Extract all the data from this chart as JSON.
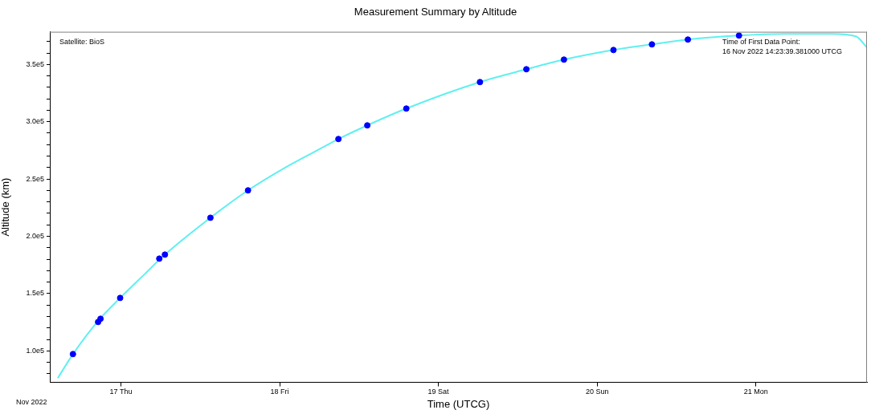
{
  "chart_data": {
    "type": "line",
    "title": "Measurement Summary by Altitude",
    "xlabel": "Time (UTCG)",
    "ylabel": "Altitude (km)",
    "annotations": [
      "Satellite: BioS",
      "Time of First Data Point:\n16 Nov 2022 14:23:39.381000 UTCG",
      "Nov 2022"
    ],
    "xlim": [
      "2022-11-16T13:15",
      "2022-11-21T16:48"
    ],
    "xticks": [
      {
        "value": "2022-11-17",
        "label": "17 Thu"
      },
      {
        "value": "2022-11-18",
        "label": "18 Fri"
      },
      {
        "value": "2022-11-19",
        "label": "19 Sat"
      },
      {
        "value": "2022-11-20",
        "label": "20 Sun"
      },
      {
        "value": "2022-11-21",
        "label": "21 Mon"
      }
    ],
    "ylim": [
      72500,
      378500
    ],
    "yticks": [
      {
        "value": 80000,
        "label": null
      },
      {
        "value": 90000,
        "label": null
      },
      {
        "value": 100000,
        "label": "1.0e5"
      },
      {
        "value": 110000,
        "label": null
      },
      {
        "value": 120000,
        "label": null
      },
      {
        "value": 130000,
        "label": null
      },
      {
        "value": 140000,
        "label": null
      },
      {
        "value": 150000,
        "label": "1.5e5"
      },
      {
        "value": 160000,
        "label": null
      },
      {
        "value": 170000,
        "label": null
      },
      {
        "value": 180000,
        "label": null
      },
      {
        "value": 190000,
        "label": null
      },
      {
        "value": 200000,
        "label": "2.0e5"
      },
      {
        "value": 210000,
        "label": null
      },
      {
        "value": 220000,
        "label": null
      },
      {
        "value": 230000,
        "label": null
      },
      {
        "value": 240000,
        "label": null
      },
      {
        "value": 250000,
        "label": "2.5e5"
      },
      {
        "value": 260000,
        "label": null
      },
      {
        "value": 270000,
        "label": null
      },
      {
        "value": 280000,
        "label": null
      },
      {
        "value": 290000,
        "label": null
      },
      {
        "value": 300000,
        "label": "3.0e5"
      },
      {
        "value": 310000,
        "label": null
      },
      {
        "value": 320000,
        "label": null
      },
      {
        "value": 330000,
        "label": null
      },
      {
        "value": 340000,
        "label": null
      },
      {
        "value": 350000,
        "label": "3.5e5"
      },
      {
        "value": 360000,
        "label": null
      },
      {
        "value": 370000,
        "label": null
      }
    ],
    "grid": false,
    "series": [
      {
        "color": "#5ff0f0",
        "marker": "none",
        "x": [
          "2022-11-16T14:27",
          "2022-11-16T16:45",
          "2022-11-16T20:37",
          "2022-11-16T23:53",
          "2022-11-17T03:30",
          "2022-11-17T06:39",
          "2022-11-17T13:32",
          "2022-11-17T19:13",
          "2022-11-18T01:00",
          "2022-11-18T05:00",
          "2022-11-18T08:53",
          "2022-11-18T13:15",
          "2022-11-18T19:09",
          "2022-11-19T06:17",
          "2022-11-19T13:18",
          "2022-11-19T18:59",
          "2022-11-20T02:28",
          "2022-11-20T08:17",
          "2022-11-20T13:43",
          "2022-11-20T21:27",
          "2022-11-21T04:13",
          "2022-11-21T11:30",
          "2022-11-21T15:07",
          "2022-11-21T16:48"
        ],
        "values": [
          76200,
          97200,
          126600,
          146200,
          166500,
          184000,
          216200,
          240100,
          260500,
          273000,
          284900,
          296800,
          311500,
          334600,
          345800,
          354200,
          362600,
          367500,
          371700,
          375200,
          376600,
          376600,
          374500,
          364700
        ]
      },
      {
        "type": "scatter",
        "color": "#0000ff",
        "marker": "circle",
        "x": [
          "2022-11-16T16:45",
          "2022-11-16T20:33",
          "2022-11-16T20:55",
          "2022-11-16T23:53",
          "2022-11-17T05:48",
          "2022-11-17T06:39",
          "2022-11-17T13:32",
          "2022-11-17T19:13",
          "2022-11-18T08:53",
          "2022-11-18T13:15",
          "2022-11-18T19:09",
          "2022-11-19T06:17",
          "2022-11-19T13:18",
          "2022-11-19T18:59",
          "2022-11-20T02:28",
          "2022-11-20T08:17",
          "2022-11-20T13:43",
          "2022-11-20T21:27"
        ],
        "values": [
          97200,
          125200,
          128000,
          146200,
          180500,
          184000,
          216200,
          240100,
          284900,
          296800,
          311500,
          334600,
          345800,
          354200,
          362600,
          367500,
          371700,
          375200
        ]
      }
    ]
  }
}
